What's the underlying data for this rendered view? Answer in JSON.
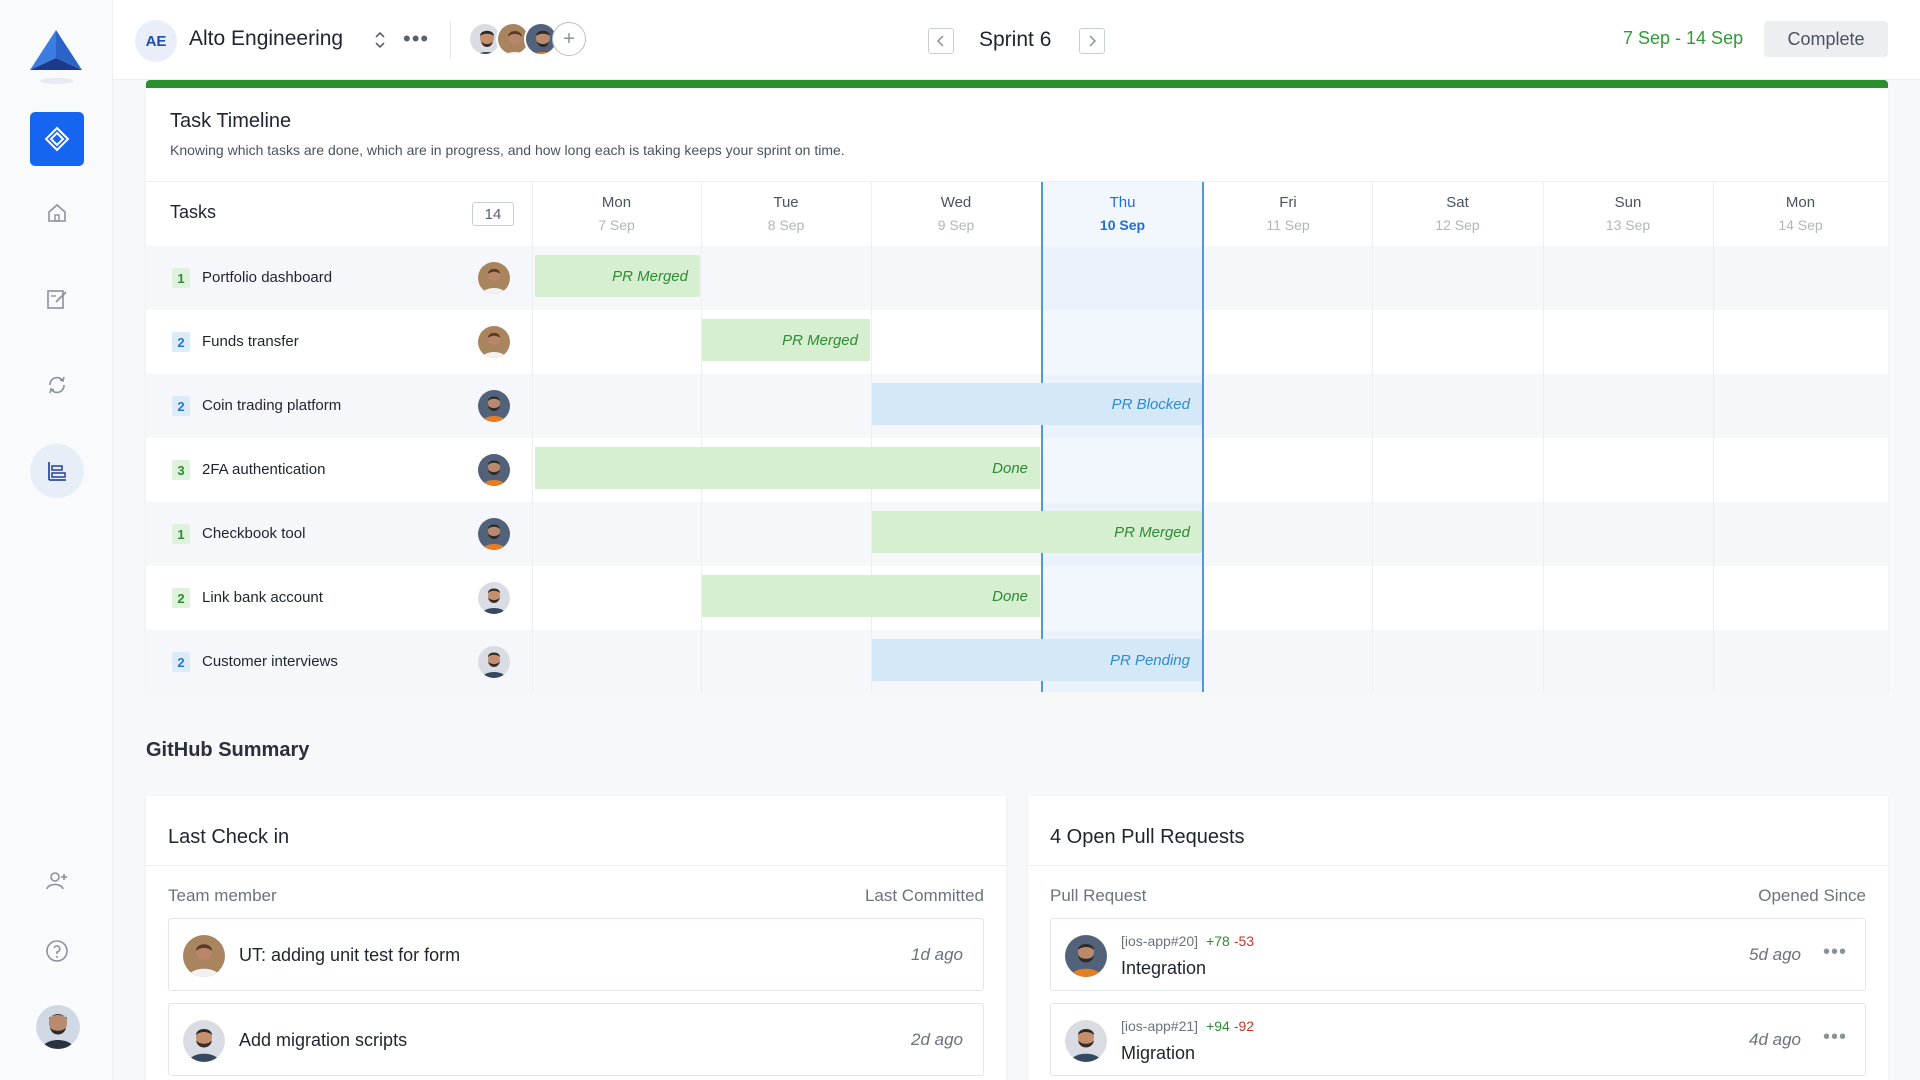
{
  "workspace": {
    "initials": "AE",
    "name": "Alto Engineering"
  },
  "sprint": {
    "title": "Sprint 6",
    "dates": "7 Sep - 14 Sep",
    "complete_label": "Complete"
  },
  "timeline": {
    "title": "Task Timeline",
    "subtitle": "Knowing which tasks are done, which are in progress, and how long each is taking keeps your sprint on time.",
    "tasks_header": "Tasks",
    "tasks_count": "14",
    "days": [
      {
        "name": "Mon",
        "date": "7 Sep"
      },
      {
        "name": "Tue",
        "date": "8 Sep"
      },
      {
        "name": "Wed",
        "date": "9 Sep"
      },
      {
        "name": "Thu",
        "date": "10 Sep",
        "today": true
      },
      {
        "name": "Fri",
        "date": "11 Sep"
      },
      {
        "name": "Sat",
        "date": "12 Sep"
      },
      {
        "name": "Sun",
        "date": "13 Sep"
      },
      {
        "name": "Mon",
        "date": "14 Sep"
      }
    ],
    "tasks": [
      {
        "num": "1",
        "name": "Portfolio dashboard",
        "bar_label": "PR Merged",
        "bar_color": "green"
      },
      {
        "num": "2",
        "name": "Funds transfer",
        "bar_label": "PR Merged",
        "bar_color": "green"
      },
      {
        "num": "2",
        "name": "Coin trading platform",
        "bar_label": "PR Blocked",
        "bar_color": "blue"
      },
      {
        "num": "3",
        "name": "2FA authentication",
        "bar_label": "Done",
        "bar_color": "green"
      },
      {
        "num": "1",
        "name": "Checkbook tool",
        "bar_label": "PR Merged",
        "bar_color": "green"
      },
      {
        "num": "2",
        "name": "Link bank account",
        "bar_label": "Done",
        "bar_color": "green"
      },
      {
        "num": "2",
        "name": "Customer interviews",
        "bar_label": "PR Pending",
        "bar_color": "blue"
      }
    ]
  },
  "github": {
    "title": "GitHub Summary",
    "last_checkin": {
      "title": "Last Check in",
      "col_left": "Team member",
      "col_right": "Last Committed",
      "items": [
        {
          "text": "UT: adding unit test for form",
          "ago": "1d ago"
        },
        {
          "text": "Add migration scripts",
          "ago": "2d ago"
        }
      ]
    },
    "pull_requests": {
      "title": "4 Open Pull Requests",
      "col_left": "Pull Request",
      "col_right": "Opened Since",
      "items": [
        {
          "ref": "[ios-app#20]",
          "added": "+78",
          "removed": "-53",
          "name": "Integration",
          "ago": "5d  ago"
        },
        {
          "ref": "[ios-app#21]",
          "added": "+94",
          "removed": "-92",
          "name": "Migration",
          "ago": "4d ago"
        }
      ]
    }
  },
  "colors": {
    "accent": "#1565f0",
    "done_green": "#2f8b33",
    "blocked_blue": "#2f8bd0",
    "progress": "#2a8f2d"
  }
}
